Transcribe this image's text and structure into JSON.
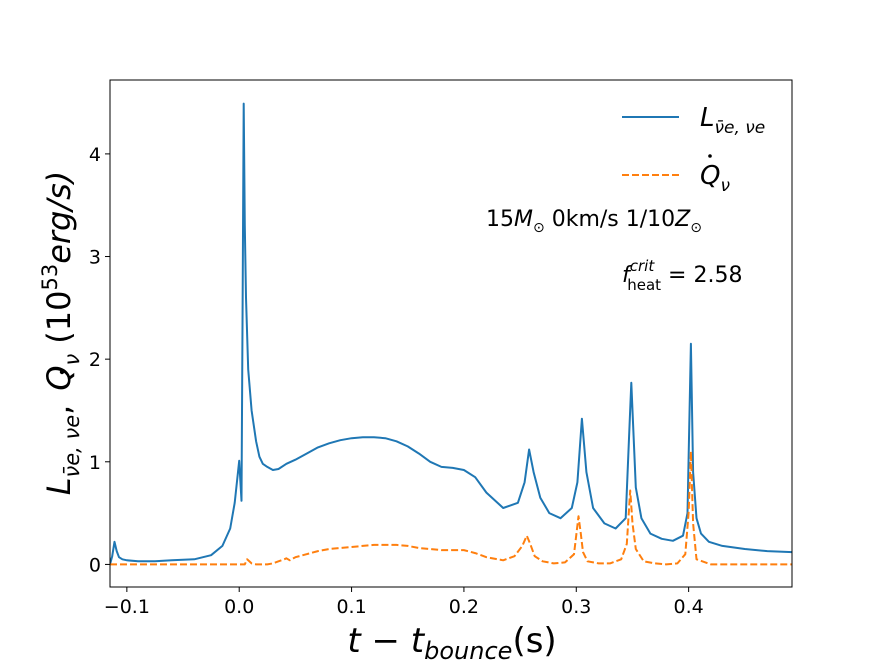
{
  "chart_data": {
    "type": "line",
    "xlabel": "t − t_bounce(s)",
    "xlabel_parts": {
      "lead": "t",
      "minus": "−",
      "t": "t",
      "sub": "bounce",
      "unit": "(s)"
    },
    "ylabel": "L_{ν̄e,νe}, Q̇_ν (10^53 erg/s)",
    "ylabel_parts": {
      "L": "L",
      "Lsub": "ν̄e, νe",
      "sep": ",",
      "Q": "Q",
      "Qsub": "ν",
      "open": "(10",
      "exp": "53",
      "unit": "erg/s)"
    },
    "xlim": [
      -0.115,
      0.492
    ],
    "ylim": [
      -0.22,
      4.72
    ],
    "xticks": [
      -0.1,
      0.0,
      0.1,
      0.2,
      0.3,
      0.4
    ],
    "xtick_labels": [
      "−0.1",
      "0.0",
      "0.1",
      "0.2",
      "0.3",
      "0.4"
    ],
    "yticks": [
      0,
      1,
      2,
      3,
      4
    ],
    "ytick_labels": [
      "0",
      "1",
      "2",
      "3",
      "4"
    ],
    "grid": false,
    "legend": "top-right",
    "annotations": [
      {
        "parts": [
          "15",
          "M",
          "⊙",
          " 0km/s 1/10",
          "Z",
          "⊙"
        ]
      },
      {
        "parts": [
          "f",
          "crit",
          "heat",
          " = 2.58"
        ]
      }
    ],
    "series": [
      {
        "name": "L_{ν̄e,νe}",
        "name_parts": {
          "L": "L",
          "sub": "ν̄e, νe"
        },
        "color": "#1f77b4",
        "style": "solid",
        "x": [
          -0.115,
          -0.113,
          -0.111,
          -0.109,
          -0.107,
          -0.104,
          -0.1,
          -0.09,
          -0.075,
          -0.06,
          -0.04,
          -0.025,
          -0.015,
          -0.008,
          -0.004,
          0.0,
          0.002,
          0.003,
          0.004,
          0.005,
          0.006,
          0.008,
          0.011,
          0.015,
          0.018,
          0.021,
          0.025,
          0.03,
          0.035,
          0.042,
          0.05,
          0.06,
          0.07,
          0.08,
          0.09,
          0.1,
          0.11,
          0.12,
          0.13,
          0.14,
          0.15,
          0.16,
          0.17,
          0.18,
          0.19,
          0.2,
          0.21,
          0.22,
          0.235,
          0.248,
          0.254,
          0.258,
          0.262,
          0.268,
          0.276,
          0.286,
          0.296,
          0.301,
          0.305,
          0.309,
          0.315,
          0.325,
          0.335,
          0.344,
          0.349,
          0.353,
          0.358,
          0.366,
          0.376,
          0.386,
          0.395,
          0.399,
          0.402,
          0.404,
          0.407,
          0.411,
          0.418,
          0.43,
          0.45,
          0.47,
          0.492
        ],
        "values": [
          0.0,
          0.08,
          0.22,
          0.13,
          0.07,
          0.05,
          0.04,
          0.03,
          0.03,
          0.04,
          0.05,
          0.09,
          0.18,
          0.35,
          0.6,
          1.01,
          0.62,
          2.5,
          4.49,
          3.3,
          2.6,
          1.9,
          1.5,
          1.2,
          1.05,
          0.98,
          0.95,
          0.92,
          0.93,
          0.98,
          1.02,
          1.08,
          1.14,
          1.18,
          1.21,
          1.23,
          1.24,
          1.24,
          1.23,
          1.2,
          1.15,
          1.08,
          1.0,
          0.95,
          0.94,
          0.92,
          0.85,
          0.7,
          0.55,
          0.6,
          0.8,
          1.12,
          0.9,
          0.65,
          0.5,
          0.45,
          0.55,
          0.8,
          1.42,
          0.9,
          0.55,
          0.4,
          0.35,
          0.45,
          1.77,
          0.75,
          0.45,
          0.3,
          0.25,
          0.23,
          0.28,
          0.5,
          2.15,
          0.9,
          0.45,
          0.3,
          0.22,
          0.18,
          0.15,
          0.13,
          0.12
        ]
      },
      {
        "name": "Q̇_ν",
        "name_parts": {
          "Q": "Q",
          "sub": "ν"
        },
        "color": "#ff7f0e",
        "style": "dashed",
        "x": [
          -0.115,
          0.005,
          0.007,
          0.009,
          0.011,
          0.015,
          0.02,
          0.025,
          0.03,
          0.035,
          0.04,
          0.042,
          0.045,
          0.05,
          0.06,
          0.07,
          0.08,
          0.09,
          0.1,
          0.11,
          0.12,
          0.13,
          0.14,
          0.15,
          0.16,
          0.17,
          0.18,
          0.19,
          0.2,
          0.21,
          0.22,
          0.235,
          0.245,
          0.252,
          0.256,
          0.259,
          0.263,
          0.27,
          0.28,
          0.29,
          0.298,
          0.302,
          0.304,
          0.306,
          0.31,
          0.32,
          0.33,
          0.34,
          0.345,
          0.348,
          0.35,
          0.353,
          0.36,
          0.37,
          0.38,
          0.39,
          0.397,
          0.4,
          0.402,
          0.404,
          0.407,
          0.42,
          0.44,
          0.492
        ],
        "values": [
          0.0,
          0.0,
          0.05,
          0.03,
          0.01,
          0.0,
          0.0,
          0.0,
          0.01,
          0.03,
          0.05,
          0.06,
          0.04,
          0.07,
          0.1,
          0.13,
          0.15,
          0.16,
          0.17,
          0.18,
          0.19,
          0.19,
          0.19,
          0.18,
          0.16,
          0.15,
          0.14,
          0.14,
          0.14,
          0.11,
          0.07,
          0.04,
          0.08,
          0.18,
          0.28,
          0.2,
          0.08,
          0.03,
          0.01,
          0.02,
          0.1,
          0.47,
          0.3,
          0.12,
          0.03,
          0.01,
          0.01,
          0.05,
          0.2,
          0.72,
          0.4,
          0.15,
          0.03,
          0.01,
          0.0,
          0.01,
          0.1,
          0.5,
          1.1,
          0.4,
          0.05,
          0.0,
          0.0,
          0.0
        ]
      }
    ]
  }
}
